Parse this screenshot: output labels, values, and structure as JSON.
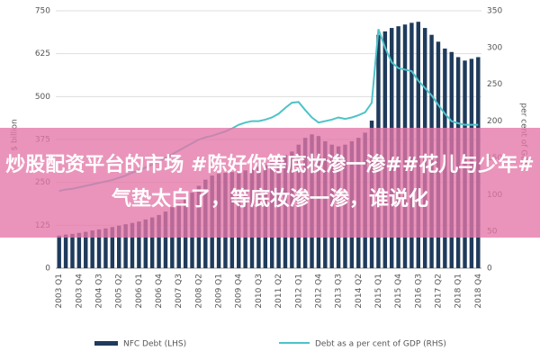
{
  "chart_data": {
    "type": "bar_line",
    "y_label": "$ billion",
    "y2_label": "per cent of GDP",
    "categories": [
      "2003 Q1",
      null,
      null,
      "2003 Q4",
      null,
      null,
      "2004 Q3",
      null,
      null,
      "2005 Q2",
      null,
      null,
      "2006 Q1",
      null,
      null,
      "2006 Q4",
      null,
      null,
      "2007 Q3",
      null,
      null,
      "2008 Q2",
      null,
      null,
      "2009 Q1",
      null,
      null,
      "2009 Q4",
      null,
      null,
      "2010 Q3",
      null,
      null,
      "2011 Q2",
      null,
      null,
      "2012 Q1",
      null,
      null,
      "2012 Q4",
      null,
      null,
      "2013 Q3",
      null,
      null,
      "2014 Q2",
      null,
      null,
      "2015 Q1",
      null,
      null,
      "2015 Q4",
      null,
      null,
      "2016 Q3",
      null,
      null,
      "2017 Q2",
      null,
      null,
      "2018 Q1",
      null,
      null,
      "2018 Q4"
    ],
    "series": [
      {
        "name": "NFC Debt (LHS)",
        "color": "#1f3b5c",
        "kind": "bar",
        "values": [
          95,
          98,
          100,
          103,
          106,
          110,
          113,
          116,
          120,
          124,
          128,
          132,
          136,
          142,
          148,
          155,
          165,
          178,
          190,
          205,
          220,
          240,
          258,
          270,
          275,
          278,
          280,
          282,
          285,
          290,
          295,
          300,
          310,
          320,
          330,
          340,
          360,
          380,
          390,
          385,
          370,
          360,
          355,
          360,
          370,
          380,
          395,
          430,
          680,
          690,
          700,
          705,
          710,
          715,
          718,
          700,
          680,
          660,
          640,
          630,
          615,
          605,
          610,
          615
        ]
      },
      {
        "name": "Debt as a per cent of GDP (RHS)",
        "color": "#4fc3c8",
        "kind": "line",
        "axis": "y2",
        "values": [
          105,
          107,
          108,
          110,
          112,
          114,
          116,
          118,
          120,
          123,
          126,
          130,
          133,
          137,
          141,
          145,
          150,
          155,
          160,
          165,
          170,
          175,
          178,
          180,
          183,
          186,
          190,
          195,
          198,
          200,
          200,
          202,
          205,
          210,
          218,
          225,
          226,
          215,
          205,
          198,
          200,
          202,
          205,
          203,
          205,
          208,
          212,
          225,
          325,
          300,
          280,
          272,
          270,
          268,
          255,
          245,
          235,
          222,
          210,
          200,
          197,
          195,
          195,
          195
        ]
      }
    ],
    "ylim": [
      0,
      750
    ],
    "yticks": [
      0,
      125,
      250,
      375,
      500,
      625,
      750
    ],
    "y2lim": [
      0,
      350
    ],
    "y2ticks": [
      0,
      50,
      100,
      150,
      200,
      250,
      300,
      350
    ],
    "grid": true
  },
  "banner_text": "炒股配资平台的市场 #陈好你等底妆渗一渗##花儿与少年#气垫太白了，等底妆渗一渗，谁说化"
}
